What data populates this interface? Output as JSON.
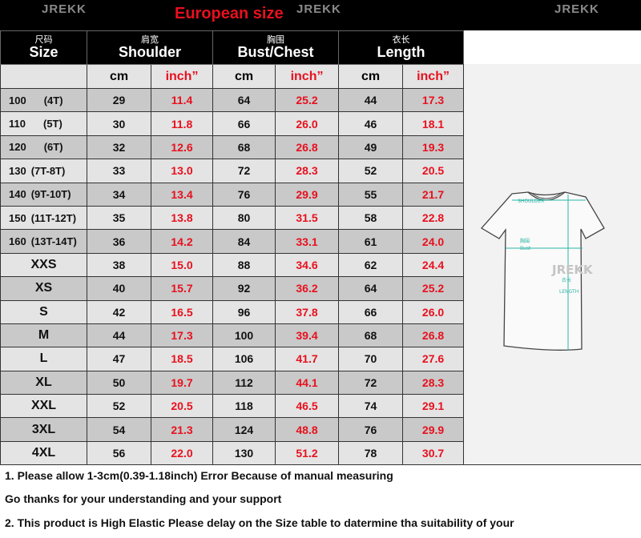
{
  "title": "European size",
  "watermark": "JREKK",
  "header": {
    "size": {
      "zh": "尺码",
      "en": "Size"
    },
    "shoulder": {
      "zh": "肩宽",
      "en": "Shoulder"
    },
    "bust": {
      "zh": "胸围",
      "en": "Bust/Chest"
    },
    "length": {
      "zh": "衣长",
      "en": "Length"
    },
    "cm": "cm",
    "inch": "inch”"
  },
  "rows": [
    {
      "size": "100",
      "age": "(4T)",
      "sh_cm": "29",
      "sh_in": "11.4",
      "bu_cm": "64",
      "bu_in": "25.2",
      "le_cm": "44",
      "le_in": "17.3"
    },
    {
      "size": "110",
      "age": "(5T)",
      "sh_cm": "30",
      "sh_in": "11.8",
      "bu_cm": "66",
      "bu_in": "26.0",
      "le_cm": "46",
      "le_in": "18.1"
    },
    {
      "size": "120",
      "age": "(6T)",
      "sh_cm": "32",
      "sh_in": "12.6",
      "bu_cm": "68",
      "bu_in": "26.8",
      "le_cm": "49",
      "le_in": "19.3"
    },
    {
      "size": "130",
      "age": "(7T-8T)",
      "sh_cm": "33",
      "sh_in": "13.0",
      "bu_cm": "72",
      "bu_in": "28.3",
      "le_cm": "52",
      "le_in": "20.5"
    },
    {
      "size": "140",
      "age": "(9T-10T)",
      "sh_cm": "34",
      "sh_in": "13.4",
      "bu_cm": "76",
      "bu_in": "29.9",
      "le_cm": "55",
      "le_in": "21.7"
    },
    {
      "size": "150",
      "age": "(11T-12T)",
      "sh_cm": "35",
      "sh_in": "13.8",
      "bu_cm": "80",
      "bu_in": "31.5",
      "le_cm": "58",
      "le_in": "22.8"
    },
    {
      "size": "160",
      "age": "(13T-14T)",
      "sh_cm": "36",
      "sh_in": "14.2",
      "bu_cm": "84",
      "bu_in": "33.1",
      "le_cm": "61",
      "le_in": "24.0"
    },
    {
      "size": "XXS",
      "sh_cm": "38",
      "sh_in": "15.0",
      "bu_cm": "88",
      "bu_in": "34.6",
      "le_cm": "62",
      "le_in": "24.4"
    },
    {
      "size": "XS",
      "sh_cm": "40",
      "sh_in": "15.7",
      "bu_cm": "92",
      "bu_in": "36.2",
      "le_cm": "64",
      "le_in": "25.2"
    },
    {
      "size": "S",
      "sh_cm": "42",
      "sh_in": "16.5",
      "bu_cm": "96",
      "bu_in": "37.8",
      "le_cm": "66",
      "le_in": "26.0"
    },
    {
      "size": "M",
      "sh_cm": "44",
      "sh_in": "17.3",
      "bu_cm": "100",
      "bu_in": "39.4",
      "le_cm": "68",
      "le_in": "26.8"
    },
    {
      "size": "L",
      "sh_cm": "47",
      "sh_in": "18.5",
      "bu_cm": "106",
      "bu_in": "41.7",
      "le_cm": "70",
      "le_in": "27.6"
    },
    {
      "size": "XL",
      "sh_cm": "50",
      "sh_in": "19.7",
      "bu_cm": "112",
      "bu_in": "44.1",
      "le_cm": "72",
      "le_in": "28.3"
    },
    {
      "size": "XXL",
      "sh_cm": "52",
      "sh_in": "20.5",
      "bu_cm": "118",
      "bu_in": "46.5",
      "le_cm": "74",
      "le_in": "29.1"
    },
    {
      "size": "3XL",
      "sh_cm": "54",
      "sh_in": "21.3",
      "bu_cm": "124",
      "bu_in": "48.8",
      "le_cm": "76",
      "le_in": "29.9"
    },
    {
      "size": "4XL",
      "sh_cm": "56",
      "sh_in": "22.0",
      "bu_cm": "130",
      "bu_in": "51.2",
      "le_cm": "78",
      "le_in": "30.7"
    }
  ],
  "diagram": {
    "shoulder": "SHOULDER",
    "bust_zh": "胸围",
    "bust": "Bust",
    "length_zh": "衣长",
    "length": "LENGTH"
  },
  "notes": [
    "1. Please allow 1-3cm(0.39-1.18inch) Error Because of manual measuring",
    "Go thanks for your understanding and your support",
    "2. This product is High Elastic  Please delay on the Size table to datermine tha suitability of your"
  ],
  "colors": {
    "accent_red": "#e8101e",
    "diagram_teal": "#2bb5a5"
  }
}
